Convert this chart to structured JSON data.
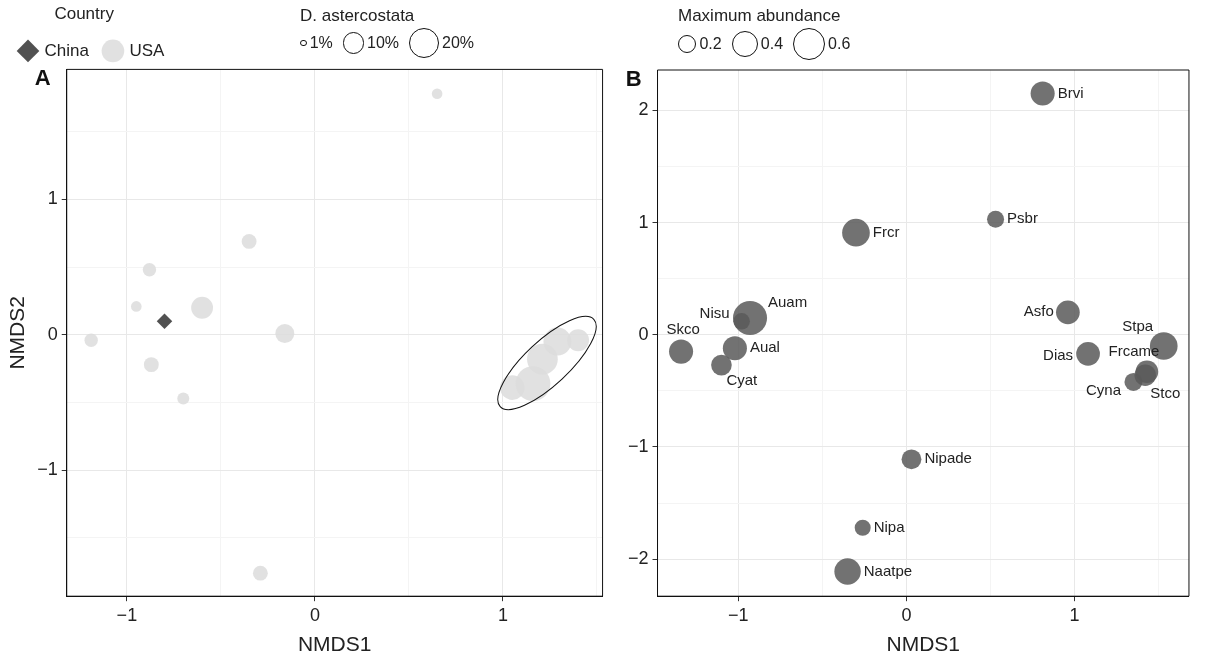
{
  "chart_data": [
    {
      "type": "bubble",
      "title": "A",
      "xlabel": "NMDS1",
      "ylabel": "NMDS2",
      "legend_title": "Country",
      "legend": "top left",
      "grid": true,
      "annotations": [
        "D. astercostata"
      ],
      "size_legend": [
        {
          "value": 1,
          "label": "1%"
        },
        {
          "value": 10,
          "label": "10%"
        },
        {
          "value": 20,
          "label": "20%"
        }
      ],
      "xlim": [
        -1.32,
        1.53
      ],
      "xticks": [
        -1,
        {
          "value": -0.5,
          "label": null
        },
        0,
        {
          "value": 0.5,
          "label": null
        },
        1,
        {
          "value": 1.5,
          "label": null
        }
      ],
      "ylim": [
        -1.93,
        1.96
      ],
      "yticks": [
        {
          "value": -1.5,
          "label": null
        },
        -1,
        {
          "value": -0.5,
          "label": null
        },
        0,
        {
          "value": 0.5,
          "label": null
        },
        1,
        {
          "value": 1.5,
          "label": null
        }
      ],
      "series": [
        {
          "name": "China",
          "color": "#333333",
          "marker": "diamond",
          "x": [
            -0.8
          ],
          "values": [
            0.1
          ],
          "sizes": [
            3.4
          ]
        },
        {
          "name": "USA",
          "color": "#dcdcdc",
          "marker": "circle",
          "x": [
            0.65,
            -0.35,
            -0.88,
            -0.95,
            -0.6,
            -1.19,
            -0.16,
            -0.87,
            -0.7,
            -0.29,
            1.05,
            1.16,
            1.21,
            1.29,
            1.4
          ],
          "values": [
            1.78,
            0.69,
            0.48,
            0.21,
            0.2,
            -0.04,
            0.01,
            -0.22,
            -0.47,
            -1.76,
            -0.39,
            -0.36,
            -0.18,
            -0.05,
            -0.04
          ],
          "sizes": [
            2.5,
            4.9,
            4,
            2.5,
            10.6,
            4,
            8,
            4.9,
            3.2,
            4.9,
            13.4,
            27,
            21,
            17.4,
            10.6
          ]
        }
      ]
    },
    {
      "type": "bubble",
      "title": "B",
      "xlabel": "NMDS1",
      "legend_title": "Maximum abundance",
      "grid": true,
      "size_legend": [
        0.2,
        0.4,
        0.6
      ],
      "xlim": [
        -1.48,
        1.68
      ],
      "xticks": [
        -1,
        {
          "value": -0.5,
          "label": null
        },
        0,
        {
          "value": 0.5,
          "label": null
        },
        1,
        {
          "value": 1.5,
          "label": null
        }
      ],
      "ylim": [
        -2.33,
        2.36
      ],
      "yticks": [
        -2,
        {
          "value": -1.5,
          "label": null
        },
        -1,
        {
          "value": -0.5,
          "label": null
        },
        0,
        {
          "value": 0.5,
          "label": null
        },
        1,
        {
          "value": 1.5,
          "label": null
        },
        2
      ],
      "annotations": [
        {
          "text": "Brvi",
          "x": 0.81,
          "y": 2.15
        },
        {
          "text": "Psbr",
          "x": 0.53,
          "y": 1.03
        },
        {
          "text": "Frcr",
          "x": -0.3,
          "y": 0.91
        },
        {
          "text": "Auam",
          "x": -0.93,
          "y": 0.15
        },
        {
          "text": "Nisu",
          "x": -0.98,
          "y": 0.12
        },
        {
          "text": "Skco",
          "x": -1.34,
          "y": -0.15
        },
        {
          "text": "Aual",
          "x": -1.02,
          "y": -0.12
        },
        {
          "text": "Cyat",
          "x": -1.1,
          "y": -0.27
        },
        {
          "text": "Asfo",
          "x": 0.96,
          "y": 0.2
        },
        {
          "text": "Dias",
          "x": 1.08,
          "y": -0.17
        },
        {
          "text": "Stpa",
          "x": 1.53,
          "y": -0.1
        },
        {
          "text": "Frcame",
          "x": 1.43,
          "y": -0.33
        },
        {
          "text": "Cyna",
          "x": 1.35,
          "y": -0.42
        },
        {
          "text": "Stco",
          "x": 1.42,
          "y": -0.36
        },
        {
          "text": "Nipade",
          "x": 0.03,
          "y": -1.11
        },
        {
          "text": "Nipa",
          "x": -0.26,
          "y": -1.72
        },
        {
          "text": "Naatpe",
          "x": -0.35,
          "y": -2.11
        }
      ],
      "series": [
        {
          "color": "#595959",
          "marker": "circle",
          "x": [
            0.81,
            0.53,
            -0.3,
            -0.93,
            -0.98,
            -1.34,
            -1.02,
            -1.1,
            0.96,
            1.08,
            1.53,
            1.43,
            1.35,
            1.42,
            0.03,
            -0.26,
            -0.35
          ],
          "values": [
            2.15,
            1.03,
            0.91,
            0.15,
            0.12,
            -0.15,
            -0.12,
            -0.27,
            0.2,
            -0.17,
            -0.1,
            -0.33,
            -0.42,
            -0.36,
            -1.11,
            -1.72,
            -2.11
          ],
          "sizes": [
            0.34,
            0.17,
            0.45,
            0.68,
            0.16,
            0.34,
            0.34,
            0.25,
            0.33,
            0.33,
            0.45,
            0.3,
            0.19,
            0.27,
            0.23,
            0.15,
            0.41
          ]
        }
      ]
    }
  ]
}
